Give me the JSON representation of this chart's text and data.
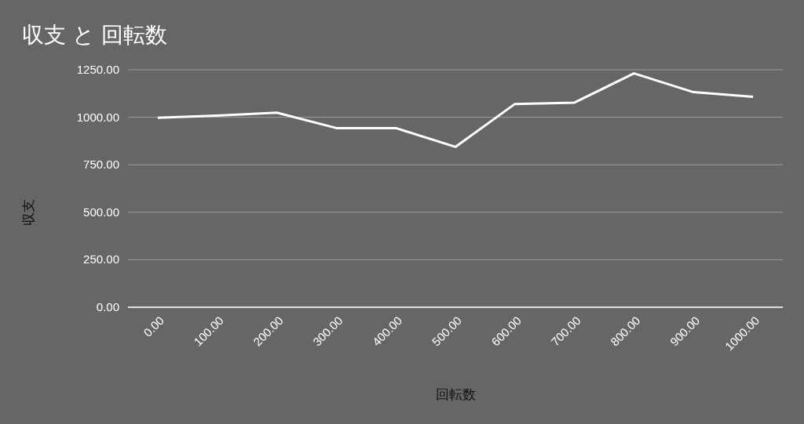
{
  "chart_data": {
    "type": "line",
    "title": "収支 と 回転数",
    "xlabel": "回転数",
    "ylabel": "収支",
    "categories": [
      "0.00",
      "100.00",
      "200.00",
      "300.00",
      "400.00",
      "500.00",
      "600.00",
      "700.00",
      "800.00",
      "900.00",
      "1000.00"
    ],
    "series": [
      {
        "color": "#ffffff",
        "values": [
          997,
          1009,
          1024,
          943,
          943,
          844,
          1070,
          1077,
          1231,
          1132,
          1108
        ]
      }
    ],
    "ylim": [
      0,
      1250
    ],
    "yticks": [
      {
        "value": 0,
        "label": "0.00"
      },
      {
        "value": 250,
        "label": "250.00"
      },
      {
        "value": 500,
        "label": "500.00"
      },
      {
        "value": 750,
        "label": "750.00"
      },
      {
        "value": 1000,
        "label": "1000.00"
      },
      {
        "value": 1250,
        "label": "1250.00"
      }
    ],
    "grid": "y"
  }
}
